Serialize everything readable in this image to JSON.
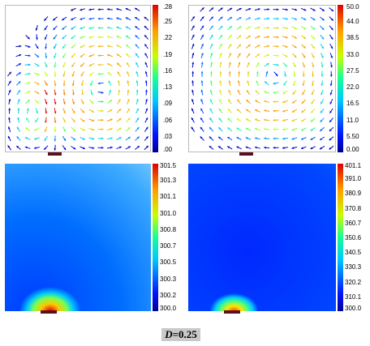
{
  "caption": {
    "variable": "D",
    "value": "=0.25"
  },
  "chart_data": [
    {
      "type": "vector",
      "field": "velocity",
      "colorbar": {
        "ticks": [
          ".00",
          ".03",
          ".06",
          ".09",
          ".13",
          ".16",
          ".19",
          ".22",
          ".25",
          ".28"
        ],
        "min": 0,
        "max": 0.28
      },
      "vortices": [
        {
          "cx": 0.2,
          "cy": 0.73,
          "shape": "tall ellipse",
          "direction": "clockwise"
        },
        {
          "cx": 0.66,
          "cy": 0.57,
          "shape": "large ellipse",
          "direction": "counter-clockwise"
        }
      ]
    },
    {
      "type": "vector",
      "field": "velocity",
      "colorbar": {
        "ticks": [
          "0.00",
          "5.50",
          "11.0",
          "16.5",
          "22.0",
          "27.5",
          "33.0",
          "38.5",
          "44.0",
          "50.0"
        ],
        "min": 0,
        "max": 50
      },
      "vortices": [
        {
          "cx": 0.58,
          "cy": 0.48,
          "shape": "single large cell",
          "direction": "clockwise"
        }
      ]
    },
    {
      "type": "heatmap",
      "field": "temperature",
      "colorbar": {
        "ticks": [
          "300.0",
          "300.2",
          "300.3",
          "300.5",
          "300.7",
          "300.8",
          "301.0",
          "301.1",
          "301.3",
          "301.5"
        ],
        "min": 300.0,
        "max": 301.5
      },
      "hotspot": {
        "x": 0.31,
        "y": 0.0
      }
    },
    {
      "type": "heatmap",
      "field": "temperature",
      "colorbar": {
        "ticks": [
          "300.0",
          "310.1",
          "320.2",
          "330.3",
          "340.5",
          "350.6",
          "360.7",
          "370.8",
          "380.9",
          "391.0",
          "401.1"
        ],
        "min": 300.0,
        "max": 401.1
      },
      "hotspot": {
        "x": 0.31,
        "y": 0.0
      }
    }
  ]
}
